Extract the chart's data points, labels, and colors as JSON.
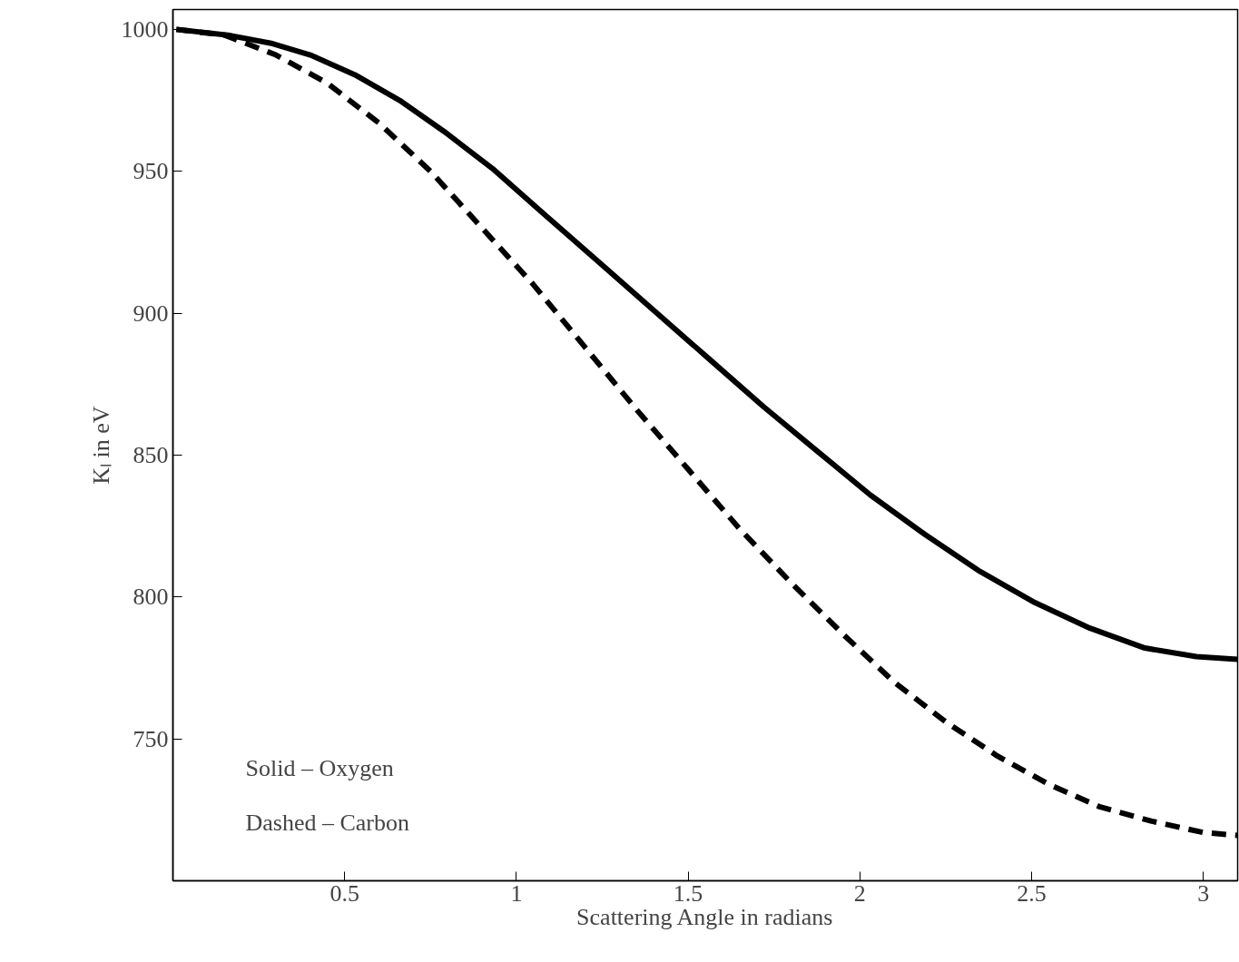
{
  "chart_data": {
    "type": "line",
    "xlabel": "Scattering Angle in radians",
    "ylabel": "Kₗ in eV",
    "annotations": [
      "Solid – Oxygen",
      "Dashed – Carbon"
    ],
    "xlim": [
      0,
      3.1
    ],
    "ylim": [
      700,
      1007
    ],
    "xticks": [
      0.5,
      1,
      1.5,
      2,
      2.5,
      3
    ],
    "yticks": [
      750,
      800,
      850,
      900,
      950,
      1000
    ],
    "grid": false,
    "series": [
      {
        "color": "#000000",
        "line_style": "solid",
        "x": [
          0.01,
          0.16,
          0.29,
          0.4,
          0.53,
          0.66,
          0.79,
          0.93,
          1.08,
          1.24,
          1.4,
          1.56,
          1.72,
          1.88,
          2.03,
          2.19,
          2.35,
          2.51,
          2.67,
          2.83,
          2.98,
          3.1
        ],
        "values": [
          1000,
          998,
          995,
          991,
          984,
          975,
          964,
          951,
          935,
          918,
          901,
          884,
          867,
          851,
          836,
          822,
          809,
          798,
          789,
          782,
          779,
          778
        ]
      },
      {
        "color": "#000000",
        "line_style": "dashed",
        "x": [
          0.01,
          0.15,
          0.3,
          0.45,
          0.6,
          0.75,
          0.9,
          1.05,
          1.2,
          1.35,
          1.5,
          1.65,
          1.8,
          1.95,
          2.1,
          2.25,
          2.4,
          2.55,
          2.7,
          2.85,
          3.0,
          3.1
        ],
        "values": [
          1000,
          998,
          991,
          981,
          967,
          950,
          930,
          910,
          888,
          866,
          845,
          824,
          805,
          787,
          770,
          756,
          744,
          734,
          726,
          721,
          717,
          716
        ]
      }
    ]
  }
}
